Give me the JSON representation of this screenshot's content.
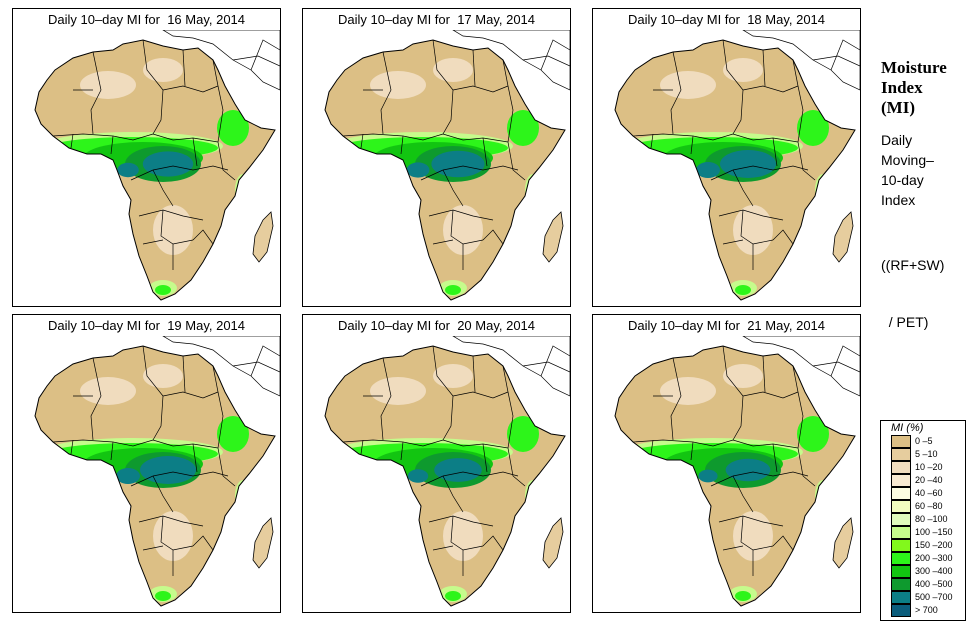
{
  "panels": [
    {
      "title": "Daily 10–day MI for  16 May, 2014",
      "date": "16 May, 2014"
    },
    {
      "title": "Daily 10–day MI for  17 May, 2014",
      "date": "17 May, 2014"
    },
    {
      "title": "Daily 10–day MI for  18 May, 2014",
      "date": "18 May, 2014"
    },
    {
      "title": "Daily 10–day MI for  19 May, 2014",
      "date": "19 May, 2014"
    },
    {
      "title": "Daily 10–day MI for  20 May, 2014",
      "date": "20 May, 2014"
    },
    {
      "title": "Daily 10–day MI for  21 May, 2014",
      "date": "21 May, 2014"
    }
  ],
  "side": {
    "title_lines": [
      "Moisture",
      "Index",
      "(MI)"
    ],
    "desc_lines": [
      "Daily",
      "Moving–",
      "10-day",
      "Index"
    ],
    "formula_lines": [
      "((RF+SW)",
      "  / PET)"
    ]
  },
  "legend": {
    "title": "MI (%)",
    "items": [
      {
        "label": "0 –5",
        "color": "#dcbf85"
      },
      {
        "label": "5 –10",
        "color": "#e6cd9e"
      },
      {
        "label": "10 –20",
        "color": "#f0dcbe"
      },
      {
        "label": "20 –40",
        "color": "#f8ead2"
      },
      {
        "label": "40 –60",
        "color": "#fdfde2"
      },
      {
        "label": "60 –80",
        "color": "#f2fdc0"
      },
      {
        "label": "80 –100",
        "color": "#e0fbbc"
      },
      {
        "label": "100 –150",
        "color": "#c6fb8c"
      },
      {
        "label": "150 –200",
        "color": "#82f81c"
      },
      {
        "label": "200 –300",
        "color": "#2df51a"
      },
      {
        "label": "300 –400",
        "color": "#12c511"
      },
      {
        "label": "400 –500",
        "color": "#0e9a2e"
      },
      {
        "label": "500 –700",
        "color": "#0c7e86"
      },
      {
        "label": "> 700",
        "color": "#0b5d7c"
      }
    ]
  },
  "map_colors": {
    "dry": "#dcbf85",
    "dry2": "#e6cd9e",
    "pale": "#f0dcbe",
    "light_green": "#c6fb8c",
    "green": "#2df51a",
    "mid_green": "#12c511",
    "dark_green": "#0e9a2e",
    "teal": "#0c7e86",
    "border": "#000000"
  },
  "panel_variation": [
    0.9,
    0.95,
    1.0,
    1.0,
    0.85,
    0.8
  ]
}
